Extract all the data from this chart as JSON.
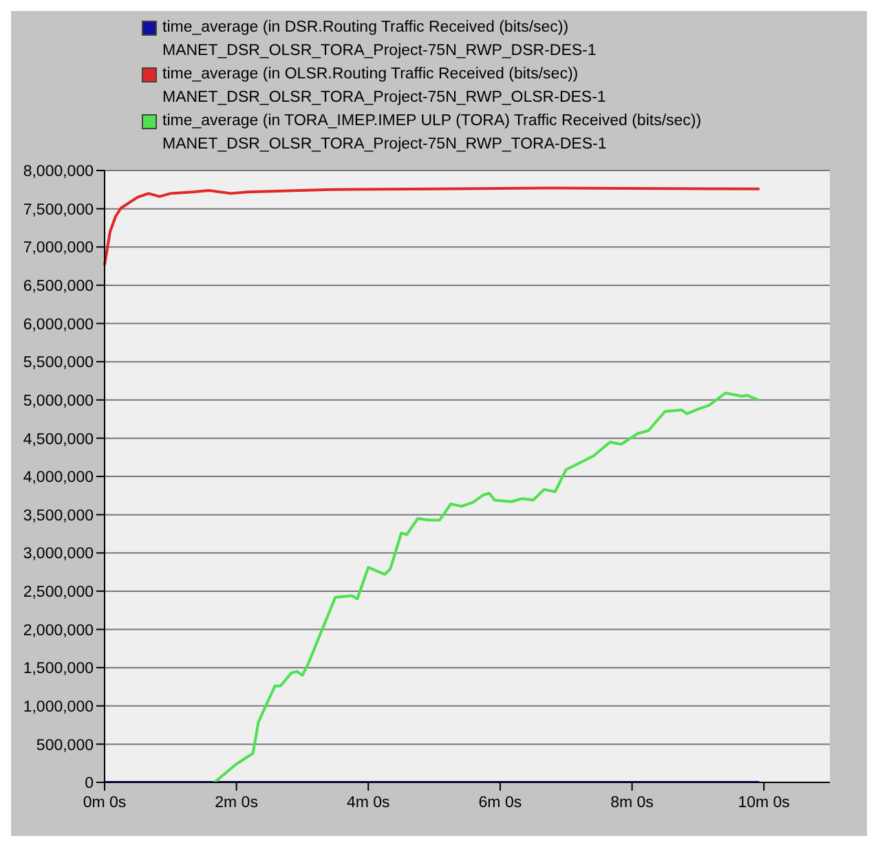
{
  "chart_data": {
    "type": "line",
    "legend": "top",
    "grid": "y",
    "categories": [
      "0m 0s",
      null,
      null,
      null,
      null,
      null,
      null,
      null,
      null,
      null,
      null,
      null,
      null,
      null,
      null,
      null,
      null,
      null,
      null,
      null,
      null,
      null,
      null,
      null,
      "2m 0s",
      null,
      null,
      null,
      null,
      null,
      null,
      null,
      null,
      null,
      null,
      null,
      null,
      null,
      null,
      null,
      null,
      null,
      null,
      null,
      null,
      null,
      null,
      null,
      "4m 0s",
      null,
      null,
      null,
      null,
      null,
      null,
      null,
      null,
      null,
      null,
      null,
      null,
      null,
      null,
      null,
      null,
      null,
      null,
      null,
      null,
      null,
      null,
      null,
      "6m 0s",
      null,
      null,
      null,
      null,
      null,
      null,
      null,
      null,
      null,
      null,
      null,
      null,
      null,
      null,
      null,
      null,
      null,
      null,
      null,
      null,
      null,
      null,
      null,
      "8m 0s",
      null,
      null,
      null,
      null,
      null,
      null,
      null,
      null,
      null,
      null,
      null,
      null,
      null,
      null,
      null,
      null,
      null,
      null,
      null,
      null,
      null,
      null,
      null,
      "10m 0s",
      null,
      null,
      null,
      null,
      null,
      null,
      null,
      null,
      null,
      null,
      null,
      null
    ],
    "ylim": [
      0,
      8000000
    ],
    "yticks": [
      {
        "value": 0,
        "label": "0"
      },
      {
        "value": 500000,
        "label": "500,000"
      },
      {
        "value": 1000000,
        "label": "1,000,000"
      },
      {
        "value": 1500000,
        "label": "1,500,000"
      },
      {
        "value": 2000000,
        "label": "2,000,000"
      },
      {
        "value": 2500000,
        "label": "2,500,000"
      },
      {
        "value": 3000000,
        "label": "3,000,000"
      },
      {
        "value": 3500000,
        "label": "3,500,000"
      },
      {
        "value": 4000000,
        "label": "4,000,000"
      },
      {
        "value": 4500000,
        "label": "4,500,000"
      },
      {
        "value": 5000000,
        "label": "5,000,000"
      },
      {
        "value": 5500000,
        "label": "5,500,000"
      },
      {
        "value": 6000000,
        "label": "6,000,000"
      },
      {
        "value": 6500000,
        "label": "6,500,000"
      },
      {
        "value": 7000000,
        "label": "7,000,000"
      },
      {
        "value": 7500000,
        "label": "7,500,000"
      },
      {
        "value": 8000000,
        "label": "8,000,000"
      }
    ],
    "series": [
      {
        "name": "time_average (in DSR.Routing Traffic Received (bits/sec))\nMANET_DSR_OLSR_TORA_Project-75N_RWP_DSR-DES-1",
        "color": "#1010a0",
        "values": [
          0,
          null,
          null,
          null,
          null,
          null,
          null,
          null,
          null,
          null,
          null,
          null,
          0,
          null,
          null,
          null,
          null,
          null,
          null,
          null,
          null,
          null,
          null,
          null,
          0,
          null,
          null,
          null,
          null,
          null,
          null,
          null,
          null,
          null,
          null,
          null,
          0,
          null,
          null,
          null,
          null,
          null,
          null,
          null,
          null,
          null,
          null,
          null,
          0,
          null,
          null,
          null,
          null,
          null,
          null,
          null,
          null,
          null,
          null,
          null,
          0,
          null,
          null,
          null,
          null,
          null,
          null,
          null,
          null,
          null,
          null,
          null,
          0,
          null,
          null,
          null,
          null,
          null,
          null,
          null,
          null,
          null,
          null,
          null,
          0,
          null,
          null,
          null,
          null,
          null,
          null,
          null,
          null,
          null,
          null,
          null,
          0,
          null,
          null,
          null,
          null,
          null,
          null,
          null,
          null,
          null,
          null,
          null,
          0,
          null,
          null,
          null,
          null,
          null,
          null,
          null,
          null,
          null,
          null,
          0,
          null,
          null,
          null,
          null,
          null,
          null,
          null,
          null,
          null,
          null,
          null,
          null,
          null
        ]
      },
      {
        "name": "time_average (in OLSR.Routing Traffic Received (bits/sec))\nMANET_DSR_OLSR_TORA_Project-75N_RWP_OLSR-DES-1",
        "color": "#e02828",
        "values": [
          6770000,
          7200000,
          7400000,
          7510000,
          null,
          null,
          7650000,
          null,
          7700000,
          null,
          7660000,
          null,
          7700000,
          null,
          null,
          null,
          7720000,
          null,
          null,
          7740000,
          null,
          null,
          null,
          7700000,
          null,
          null,
          7720000,
          null,
          null,
          null,
          null,
          null,
          null,
          null,
          null,
          null,
          null,
          null,
          null,
          null,
          null,
          7750000,
          null,
          null,
          null,
          null,
          null,
          null,
          null,
          null,
          null,
          null,
          null,
          null,
          null,
          null,
          null,
          null,
          null,
          null,
          null,
          7760000,
          null,
          null,
          null,
          null,
          null,
          null,
          null,
          null,
          null,
          null,
          null,
          null,
          null,
          null,
          null,
          null,
          null,
          null,
          null,
          7770000,
          null,
          null,
          null,
          null,
          null,
          null,
          null,
          null,
          null,
          null,
          null,
          null,
          null,
          null,
          null,
          null,
          null,
          null,
          null,
          null,
          null,
          null,
          null,
          null,
          null,
          null,
          null,
          null,
          null,
          null,
          null,
          null,
          null,
          null,
          null,
          null,
          null,
          7760000,
          null,
          null,
          null,
          null,
          null,
          null,
          null,
          null,
          null,
          null,
          null,
          null,
          null
        ]
      },
      {
        "name": "time_average (in TORA_IMEP.IMEP ULP (TORA) Traffic Received (bits/sec))\nMANET_DSR_OLSR_TORA_Project-75N_RWP_TORA-DES-1",
        "color": "#50e050",
        "values": [
          null,
          null,
          null,
          null,
          null,
          null,
          null,
          null,
          null,
          null,
          null,
          null,
          null,
          null,
          null,
          null,
          null,
          null,
          null,
          null,
          0,
          null,
          null,
          null,
          240000,
          null,
          null,
          380000,
          790000,
          null,
          null,
          1260000,
          1260000,
          null,
          1430000,
          1450000,
          1400000,
          1540000,
          null,
          null,
          2070000,
          null,
          2420000,
          null,
          null,
          2440000,
          2400000,
          null,
          2810000,
          null,
          null,
          2720000,
          2790000,
          null,
          3260000,
          3240000,
          null,
          3450000,
          null,
          3430000,
          null,
          3430000,
          null,
          3640000,
          null,
          3610000,
          null,
          3660000,
          null,
          3760000,
          3780000,
          3690000,
          null,
          null,
          3670000,
          null,
          3710000,
          null,
          3690000,
          null,
          3830000,
          null,
          3800000,
          null,
          4090000,
          null,
          4160000,
          null,
          null,
          4270000,
          null,
          null,
          4450000,
          null,
          4420000,
          null,
          null,
          4560000,
          null,
          4600000,
          null,
          null,
          4850000,
          null,
          null,
          4870000,
          4820000,
          null,
          4880000,
          null,
          4930000,
          null,
          null,
          5090000,
          null,
          null,
          5050000,
          5060000,
          null,
          5000000,
          null,
          null,
          null,
          null,
          null,
          null,
          null,
          null,
          null,
          null,
          null,
          null,
          null
        ]
      }
    ]
  }
}
